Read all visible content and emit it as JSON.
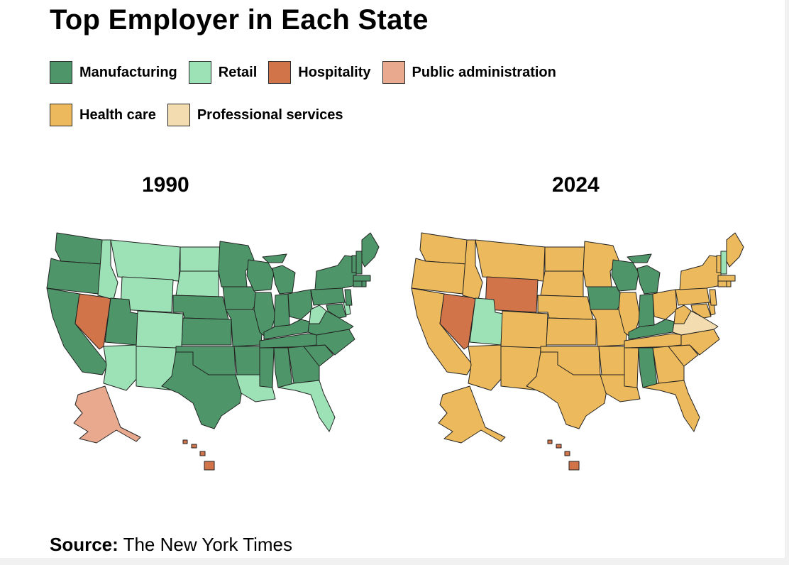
{
  "title": "Top Employer in Each State",
  "legend": [
    {
      "label": "Manufacturing",
      "color": "#4e9669"
    },
    {
      "label": "Retail",
      "color": "#9de2b6"
    },
    {
      "label": "Hospitality",
      "color": "#d1744a"
    },
    {
      "label": "Public administration",
      "color": "#e8a98e"
    },
    {
      "label": "Health care",
      "color": "#ecb95c"
    },
    {
      "label": "Professional services",
      "color": "#f3dcb0"
    }
  ],
  "maps": [
    {
      "year": "1990",
      "default_fill": "#4e9669",
      "states": {
        "NV": "#d1744a",
        "HI": "#d1744a",
        "AK": "#e8a98e",
        "ID": "#9de2b6",
        "MT": "#9de2b6",
        "WY": "#9de2b6",
        "ND": "#9de2b6",
        "SD": "#9de2b6",
        "CO": "#9de2b6",
        "AZ": "#9de2b6",
        "NM": "#9de2b6",
        "LA": "#9de2b6",
        "FL": "#9de2b6",
        "WV": "#9de2b6",
        "DE": "#9de2b6"
      }
    },
    {
      "year": "2024",
      "default_fill": "#ecb95c",
      "states": {
        "NV": "#d1744a",
        "WY": "#d1744a",
        "HI": "#d1744a",
        "UT": "#9de2b6",
        "NH": "#9de2b6",
        "VA": "#f3dcb0",
        "WI": "#4e9669",
        "MI": "#4e9669",
        "IA": "#4e9669",
        "IN": "#4e9669",
        "KY": "#4e9669",
        "AL": "#4e9669"
      }
    }
  ],
  "source": {
    "label": "Source:",
    "text": "The New York Times"
  }
}
